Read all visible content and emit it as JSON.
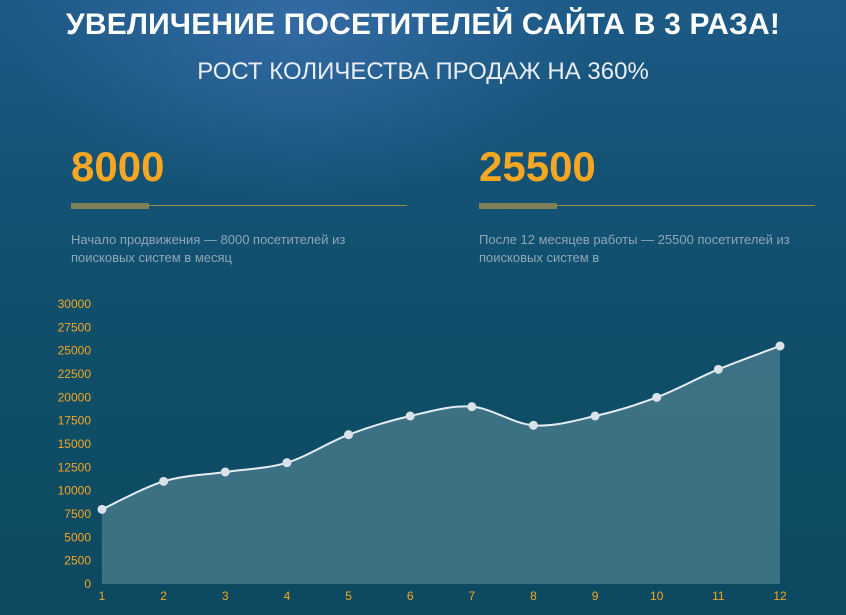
{
  "headline": "УВЕЛИЧЕНИЕ ПОСЕТИТЕЛЕЙ САЙТА В 3 РАЗА!",
  "subheadline": "РОСТ КОЛИЧЕСТВА ПРОДАЖ НА 360%",
  "stats": [
    {
      "value": "8000",
      "description": "Начало продвижения — 8000 посетителей из поисковых систем в месяц"
    },
    {
      "value": "25500",
      "description": "После 12 месяцев работы — 25500 посетителей из поисковых систем в"
    }
  ],
  "colors": {
    "accent": "#f5a623",
    "line": "#e6edf2",
    "area": "#4f8090",
    "background": "#0f4e68"
  },
  "chart_data": {
    "type": "area",
    "x": [
      1,
      2,
      3,
      4,
      5,
      6,
      7,
      8,
      9,
      10,
      11,
      12
    ],
    "values": [
      8000,
      11000,
      12000,
      13000,
      16000,
      18000,
      19000,
      17000,
      18000,
      20000,
      23000,
      25500
    ],
    "yticks": [
      0,
      2500,
      5000,
      7500,
      10000,
      12500,
      15000,
      17500,
      20000,
      22500,
      25000,
      27500,
      30000
    ],
    "ylim": [
      0,
      30000
    ],
    "title": "",
    "xlabel": "",
    "ylabel": "",
    "grid": false
  }
}
